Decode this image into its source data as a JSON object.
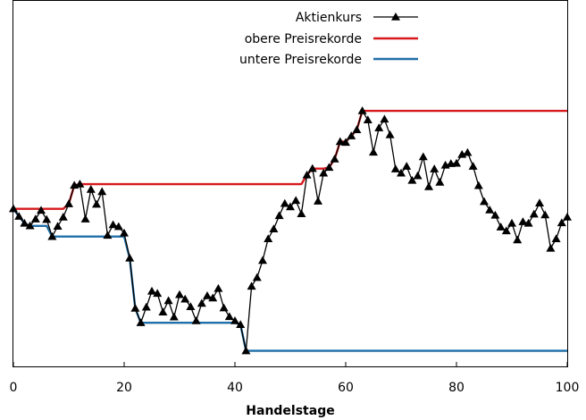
{
  "chart_data": {
    "type": "line",
    "title": "",
    "xlabel": "Handelstage",
    "ylabel": "",
    "xlim": [
      0,
      100
    ],
    "x_ticks": [
      0,
      20,
      40,
      60,
      80,
      100
    ],
    "grid": false,
    "legend_position": "top-center",
    "series": [
      {
        "name": "Aktienkurs",
        "color": "#000000",
        "marker": "triangle",
        "x": [
          0,
          1,
          2,
          3,
          4,
          5,
          6,
          7,
          8,
          9,
          10,
          11,
          12,
          13,
          14,
          15,
          16,
          17,
          18,
          19,
          20,
          21,
          22,
          23,
          24,
          25,
          26,
          27,
          28,
          29,
          30,
          31,
          32,
          33,
          34,
          35,
          36,
          37,
          38,
          39,
          40,
          41,
          42,
          43,
          44,
          45,
          46,
          47,
          48,
          49,
          50,
          51,
          52,
          53,
          54,
          55,
          56,
          57,
          58,
          59,
          60,
          61,
          62,
          63,
          64,
          65,
          66,
          67,
          68,
          69,
          70,
          71,
          72,
          73,
          74,
          75,
          76,
          77,
          78,
          79,
          80,
          81,
          82,
          83,
          84,
          85,
          86,
          87,
          88,
          89,
          90,
          91,
          92,
          93,
          94,
          95,
          96,
          97,
          98,
          99,
          100
        ],
        "values": [
          0.5,
          0.3,
          0.12,
          0.05,
          0.23,
          0.46,
          0.22,
          -0.23,
          0.04,
          0.28,
          0.63,
          1.12,
          1.15,
          0.23,
          1.01,
          0.62,
          0.95,
          -0.2,
          0.08,
          0.03,
          -0.14,
          -0.8,
          -2.12,
          -2.5,
          -2.09,
          -1.67,
          -1.73,
          -2.22,
          -1.92,
          -2.35,
          -1.76,
          -1.88,
          -2.08,
          -2.45,
          -1.99,
          -1.79,
          -1.85,
          -1.6,
          -2.11,
          -2.34,
          -2.45,
          -2.55,
          -3.24,
          -1.54,
          -1.31,
          -0.86,
          -0.29,
          -0.03,
          0.32,
          0.64,
          0.55,
          0.72,
          0.37,
          1.39,
          1.56,
          0.7,
          1.44,
          1.59,
          1.81,
          2.27,
          2.25,
          2.42,
          2.58,
          3.08,
          2.84,
          1.99,
          2.63,
          2.86,
          2.45,
          1.55,
          1.44,
          1.62,
          1.25,
          1.37,
          1.87,
          1.08,
          1.55,
          1.2,
          1.65,
          1.69,
          1.7,
          1.93,
          1.98,
          1.62,
          1.11,
          0.69,
          0.47,
          0.33,
          0.02,
          -0.08,
          0.12,
          -0.32,
          0.16,
          0.12,
          0.36,
          0.65,
          0.34,
          -0.54,
          -0.29,
          0.13,
          0.28
        ]
      },
      {
        "name": "obere Preisrekorde",
        "color": "#d7191c",
        "x": [
          0,
          1,
          2,
          3,
          4,
          5,
          6,
          7,
          8,
          9,
          10,
          11,
          12,
          13,
          14,
          15,
          16,
          17,
          18,
          19,
          20,
          21,
          22,
          23,
          24,
          25,
          26,
          27,
          28,
          29,
          30,
          31,
          32,
          33,
          34,
          35,
          36,
          37,
          38,
          39,
          40,
          41,
          42,
          43,
          44,
          45,
          46,
          47,
          48,
          49,
          50,
          51,
          52,
          53,
          54,
          55,
          56,
          57,
          58,
          59,
          60,
          61,
          62,
          63,
          64,
          65,
          66,
          67,
          68,
          69,
          70,
          71,
          72,
          73,
          74,
          75,
          76,
          77,
          78,
          79,
          80,
          81,
          82,
          83,
          84,
          85,
          86,
          87,
          88,
          89,
          90,
          91,
          92,
          93,
          94,
          95,
          96,
          97,
          98,
          99,
          100
        ],
        "values": [
          0.5,
          0.5,
          0.5,
          0.5,
          0.5,
          0.5,
          0.5,
          0.5,
          0.5,
          0.5,
          0.63,
          1.12,
          1.15,
          1.15,
          1.15,
          1.15,
          1.15,
          1.15,
          1.15,
          1.15,
          1.15,
          1.15,
          1.15,
          1.15,
          1.15,
          1.15,
          1.15,
          1.15,
          1.15,
          1.15,
          1.15,
          1.15,
          1.15,
          1.15,
          1.15,
          1.15,
          1.15,
          1.15,
          1.15,
          1.15,
          1.15,
          1.15,
          1.15,
          1.15,
          1.15,
          1.15,
          1.15,
          1.15,
          1.15,
          1.15,
          1.15,
          1.15,
          1.15,
          1.39,
          1.56,
          1.56,
          1.56,
          1.59,
          1.81,
          2.27,
          2.27,
          2.42,
          2.58,
          3.08,
          3.08,
          3.08,
          3.08,
          3.08,
          3.08,
          3.08,
          3.08,
          3.08,
          3.08,
          3.08,
          3.08,
          3.08,
          3.08,
          3.08,
          3.08,
          3.08,
          3.08,
          3.08,
          3.08,
          3.08,
          3.08,
          3.08,
          3.08,
          3.08,
          3.08,
          3.08,
          3.08,
          3.08,
          3.08,
          3.08,
          3.08,
          3.08,
          3.08,
          3.08,
          3.08,
          3.08,
          3.08
        ]
      },
      {
        "name": "untere Preisrekorde",
        "color": "#1f6fa8",
        "x": [
          0,
          1,
          2,
          3,
          4,
          5,
          6,
          7,
          8,
          9,
          10,
          11,
          12,
          13,
          14,
          15,
          16,
          17,
          18,
          19,
          20,
          21,
          22,
          23,
          24,
          25,
          26,
          27,
          28,
          29,
          30,
          31,
          32,
          33,
          34,
          35,
          36,
          37,
          38,
          39,
          40,
          41,
          42,
          43,
          44,
          45,
          46,
          47,
          48,
          49,
          50,
          51,
          52,
          53,
          54,
          55,
          56,
          57,
          58,
          59,
          60,
          61,
          62,
          63,
          64,
          65,
          66,
          67,
          68,
          69,
          70,
          71,
          72,
          73,
          74,
          75,
          76,
          77,
          78,
          79,
          80,
          81,
          82,
          83,
          84,
          85,
          86,
          87,
          88,
          89,
          90,
          91,
          92,
          93,
          94,
          95,
          96,
          97,
          98,
          99,
          100
        ],
        "values": [
          0.5,
          0.3,
          0.12,
          0.05,
          0.05,
          0.05,
          0.05,
          -0.23,
          -0.23,
          -0.23,
          -0.23,
          -0.23,
          -0.23,
          -0.23,
          -0.23,
          -0.23,
          -0.23,
          -0.23,
          -0.23,
          -0.23,
          -0.23,
          -0.8,
          -2.12,
          -2.5,
          -2.5,
          -2.5,
          -2.5,
          -2.5,
          -2.5,
          -2.5,
          -2.5,
          -2.5,
          -2.5,
          -2.5,
          -2.5,
          -2.5,
          -2.5,
          -2.5,
          -2.5,
          -2.5,
          -2.5,
          -2.55,
          -3.24,
          -3.24,
          -3.24,
          -3.24,
          -3.24,
          -3.24,
          -3.24,
          -3.24,
          -3.24,
          -3.24,
          -3.24,
          -3.24,
          -3.24,
          -3.24,
          -3.24,
          -3.24,
          -3.24,
          -3.24,
          -3.24,
          -3.24,
          -3.24,
          -3.24,
          -3.24,
          -3.24,
          -3.24,
          -3.24,
          -3.24,
          -3.24,
          -3.24,
          -3.24,
          -3.24,
          -3.24,
          -3.24,
          -3.24,
          -3.24,
          -3.24,
          -3.24,
          -3.24,
          -3.24,
          -3.24,
          -3.24,
          -3.24,
          -3.24,
          -3.24,
          -3.24,
          -3.24,
          -3.24,
          -3.24,
          -3.24,
          -3.24,
          -3.24,
          -3.24,
          -3.24,
          -3.24,
          -3.24,
          -3.24,
          -3.24,
          -3.24,
          -3.24
        ]
      }
    ]
  }
}
